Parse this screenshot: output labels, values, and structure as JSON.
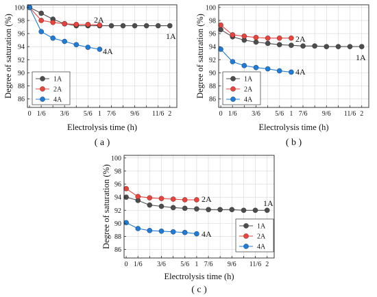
{
  "chart_data": [
    {
      "type": "line",
      "caption": "( a )",
      "xlabel": "Electrolysis time (h)",
      "ylabel": "Degree of saturation (%)",
      "xlim": [
        -0.03,
        2.1
      ],
      "ylim": [
        84.7,
        100.4
      ],
      "xticks": [
        0,
        0.167,
        0.5,
        0.833,
        1,
        1.167,
        1.5,
        1.833,
        2
      ],
      "xticklabels": [
        "0",
        "1/6",
        "3/6",
        "5/6",
        "1",
        "7/6",
        "9/6",
        "11/6",
        "2"
      ],
      "yticks": [
        86,
        88,
        90,
        92,
        94,
        96,
        98,
        100
      ],
      "grid": true,
      "legend": "bottom-left",
      "series": [
        {
          "name": "1A",
          "color": "#4d4d4d",
          "x": [
            0,
            0.167,
            0.333,
            0.5,
            0.667,
            0.833,
            1,
            1.167,
            1.333,
            1.5,
            1.667,
            1.833,
            2
          ],
          "y": [
            100,
            99.1,
            98.2,
            97.5,
            97.2,
            97.2,
            97.2,
            97.2,
            97.2,
            97.2,
            97.2,
            97.2,
            97.2
          ]
        },
        {
          "name": "2A",
          "color": "#e8433c",
          "x": [
            0,
            0.167,
            0.333,
            0.5,
            0.667,
            0.833,
            1
          ],
          "y": [
            100,
            98.0,
            97.7,
            97.5,
            97.4,
            97.4,
            97.3
          ]
        },
        {
          "name": "4A",
          "color": "#1e7bd6",
          "x": [
            0,
            0.167,
            0.333,
            0.5,
            0.667,
            0.833,
            1
          ],
          "y": [
            100,
            96.3,
            95.3,
            94.8,
            94.3,
            93.9,
            93.6
          ]
        }
      ],
      "annotations": [
        {
          "text": "2A"
        },
        {
          "text": "1A"
        },
        {
          "text": "4A"
        }
      ]
    },
    {
      "type": "line",
      "caption": "( b )",
      "xlabel": "Electrolysis time (h)",
      "ylabel": "Degree of saturation (%)",
      "xlim": [
        -0.03,
        2.1
      ],
      "ylim": [
        84.7,
        100.4
      ],
      "xticks": [
        0,
        0.167,
        0.5,
        0.833,
        1,
        1.167,
        1.5,
        1.833,
        2
      ],
      "xticklabels": [
        "0",
        "1/6",
        "3/6",
        "5/6",
        "1",
        "7/6",
        "9/6",
        "11/6",
        "2"
      ],
      "yticks": [
        86,
        88,
        90,
        92,
        94,
        96,
        98,
        100
      ],
      "grid": true,
      "legend": "bottom-left",
      "series": [
        {
          "name": "1A",
          "color": "#4d4d4d",
          "x": [
            0,
            0.167,
            0.333,
            0.5,
            0.667,
            0.833,
            1,
            1.167,
            1.333,
            1.5,
            1.667,
            1.833,
            2
          ],
          "y": [
            96.6,
            95.5,
            95.0,
            94.7,
            94.5,
            94.3,
            94.2,
            94.1,
            94.1,
            94.0,
            94.0,
            94.0,
            94.0
          ]
        },
        {
          "name": "2A",
          "color": "#e8433c",
          "x": [
            0,
            0.167,
            0.333,
            0.5,
            0.667,
            0.833,
            1
          ],
          "y": [
            97.3,
            95.8,
            95.6,
            95.4,
            95.3,
            95.3,
            95.3
          ]
        },
        {
          "name": "4A",
          "color": "#1e7bd6",
          "x": [
            0,
            0.167,
            0.333,
            0.5,
            0.667,
            0.833,
            1
          ],
          "y": [
            93.6,
            91.7,
            91.1,
            90.8,
            90.6,
            90.3,
            90.1
          ]
        }
      ],
      "annotations": [
        {
          "text": "2A"
        },
        {
          "text": "1A"
        },
        {
          "text": "4A"
        }
      ]
    },
    {
      "type": "line",
      "caption": "( c )",
      "xlabel": "Electrolysis time (h)",
      "ylabel": "Degree of saturation (%)",
      "xlim": [
        -0.03,
        2.1
      ],
      "ylim": [
        84.7,
        100.4
      ],
      "xticks": [
        0,
        0.167,
        0.5,
        0.833,
        1,
        1.167,
        1.5,
        1.833,
        2
      ],
      "xticklabels": [
        "0",
        "1/6",
        "3/6",
        "5/6",
        "1",
        "7/6",
        "9/6",
        "11/6",
        "2"
      ],
      "yticks": [
        86,
        88,
        90,
        92,
        94,
        96,
        98,
        100
      ],
      "grid": true,
      "legend": "bottom-right",
      "series": [
        {
          "name": "1A",
          "color": "#4d4d4d",
          "x": [
            0,
            0.167,
            0.333,
            0.5,
            0.667,
            0.833,
            1,
            1.167,
            1.333,
            1.5,
            1.667,
            1.833,
            2
          ],
          "y": [
            94.0,
            93.5,
            92.8,
            92.6,
            92.4,
            92.3,
            92.2,
            92.1,
            92.1,
            92.1,
            92.0,
            92.0,
            92.0
          ]
        },
        {
          "name": "2A",
          "color": "#e8433c",
          "x": [
            0,
            0.167,
            0.333,
            0.5,
            0.667,
            0.833,
            1
          ],
          "y": [
            95.3,
            94.1,
            93.9,
            93.8,
            93.7,
            93.6,
            93.6
          ]
        },
        {
          "name": "4A",
          "color": "#1e7bd6",
          "x": [
            0,
            0.167,
            0.333,
            0.5,
            0.667,
            0.833,
            1
          ],
          "y": [
            90.1,
            89.2,
            88.9,
            88.8,
            88.7,
            88.6,
            88.4
          ]
        }
      ],
      "annotations": [
        {
          "text": "2A"
        },
        {
          "text": "1A"
        },
        {
          "text": "4A"
        }
      ]
    }
  ]
}
